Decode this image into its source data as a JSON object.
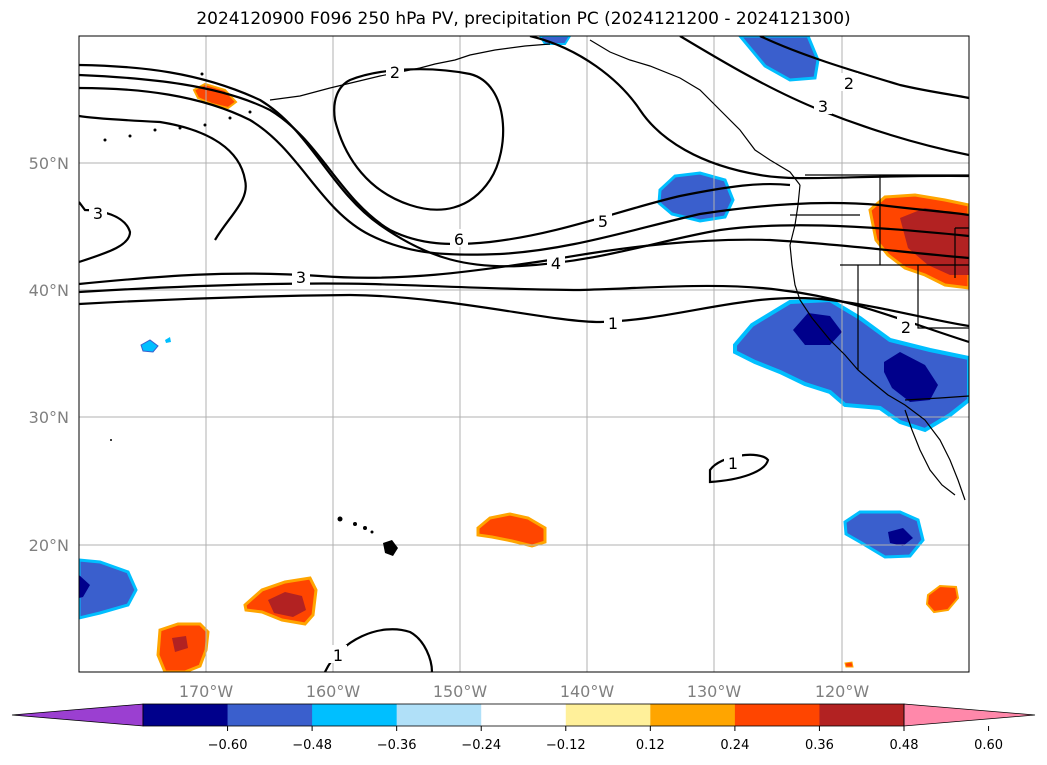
{
  "title": "2024120900 F096 250 hPa PV, precipitation PC (2024121200 - 2024121300)",
  "lon_labels": [
    "170°W",
    "160°W",
    "150°W",
    "140°W",
    "130°W",
    "120°W"
  ],
  "lat_labels": [
    "50°N",
    "40°N",
    "30°N",
    "20°N"
  ],
  "colorbar": {
    "ticks": [
      "−0.60",
      "−0.48",
      "−0.36",
      "−0.24",
      "−0.12",
      "0.12",
      "0.24",
      "0.36",
      "0.48",
      "0.60"
    ],
    "colors": [
      "#9b3fd1",
      "#00008b",
      "#3a5fcd",
      "#00bfff",
      "#b0e0f8",
      "#ffffff",
      "#fff09a",
      "#ffa500",
      "#ff4500",
      "#b22222",
      "#ff88aa"
    ]
  },
  "contour_labels": [
    "6",
    "5",
    "4",
    "3",
    "2",
    "1",
    "3",
    "2",
    "3",
    "2",
    "1",
    "1"
  ],
  "colors": {
    "gridline": "#b0b0b0",
    "contour": "#000000",
    "coast": "#000000"
  }
}
